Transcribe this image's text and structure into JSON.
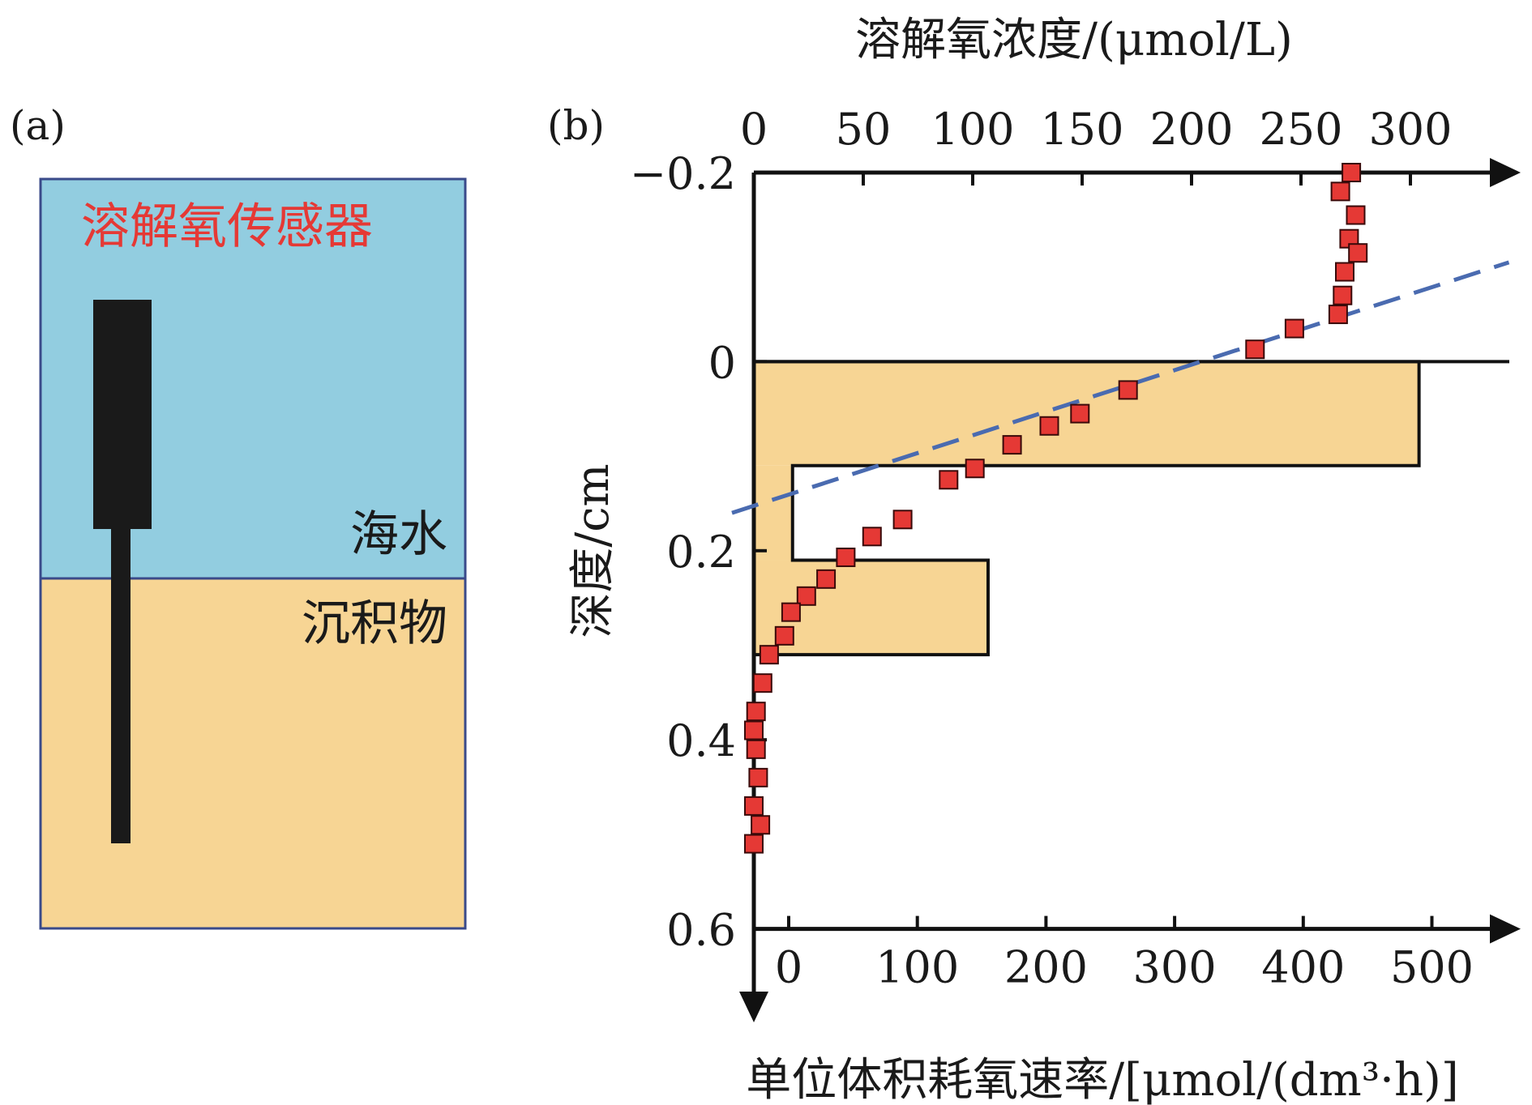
{
  "panel_a": {
    "label": "(a)",
    "sensor_label": "溶解氧传感器",
    "seawater_label": "海水",
    "sediment_label": "沉积物",
    "colors": {
      "seawater": "#92CDE0",
      "sediment": "#F7D594",
      "sensor": "#1a1a1a",
      "sensor_label": "#E53935",
      "border": "#3A4A8A"
    }
  },
  "panel_b": {
    "label": "(b)",
    "top_axis_label": "溶解氧浓度/(μmol/L)",
    "bottom_axis_label": "单位体积耗氧速率/[μmol/(dm³·h)]",
    "left_axis_label": "深度/cm"
  },
  "chart_data": {
    "type": "scatter",
    "y_axis": {
      "label": "深度/cm",
      "range": [
        -0.2,
        0.6
      ],
      "ticks": [
        -0.2,
        0,
        0.2,
        0.4,
        0.6
      ],
      "tick_labels": [
        "−0.2",
        "0",
        "0.2",
        "0.4",
        "0.6"
      ],
      "inverted": true
    },
    "top_x_axis": {
      "label": "溶解氧浓度/(μmol/L)",
      "range": [
        0,
        345
      ],
      "ticks": [
        0,
        50,
        100,
        150,
        200,
        250,
        300
      ]
    },
    "bottom_x_axis": {
      "label": "单位体积耗氧速率/[μmol/(dm³·h)]",
      "range": [
        -30,
        575
      ],
      "ticks": [
        0,
        100,
        200,
        300,
        400,
        500
      ]
    },
    "series": [
      {
        "type": "scatter",
        "axis": "top",
        "color": "#E53935",
        "points": [
          [
            273,
            -0.2
          ],
          [
            268,
            -0.18
          ],
          [
            275,
            -0.155
          ],
          [
            272,
            -0.13
          ],
          [
            276,
            -0.115
          ],
          [
            270,
            -0.095
          ],
          [
            269,
            -0.07
          ],
          [
            267,
            -0.05
          ],
          [
            247,
            -0.035
          ],
          [
            229,
            -0.013
          ],
          [
            171,
            0.03
          ],
          [
            149,
            0.055
          ],
          [
            135,
            0.068
          ],
          [
            118,
            0.088
          ],
          [
            101,
            0.113
          ],
          [
            89,
            0.125
          ],
          [
            68,
            0.167
          ],
          [
            54,
            0.185
          ],
          [
            42,
            0.207
          ],
          [
            33,
            0.23
          ],
          [
            24,
            0.248
          ],
          [
            17,
            0.265
          ],
          [
            14,
            0.29
          ],
          [
            7,
            0.31
          ],
          [
            4,
            0.34
          ],
          [
            1,
            0.37
          ],
          [
            0,
            0.39
          ],
          [
            1,
            0.41
          ],
          [
            2,
            0.44
          ],
          [
            0,
            0.47
          ],
          [
            3,
            0.49
          ],
          [
            0,
            0.51
          ]
        ]
      },
      {
        "type": "step-bar",
        "axis": "bottom",
        "color": "#F7D594",
        "bars": [
          {
            "depth_from": 0.0,
            "depth_to": 0.11,
            "value": 490
          },
          {
            "depth_from": 0.11,
            "depth_to": 0.21,
            "value": 3
          },
          {
            "depth_from": 0.21,
            "depth_to": 0.31,
            "value": 155
          }
        ]
      },
      {
        "type": "line",
        "style": "dashed",
        "axis": "top",
        "color": "#4A6BB0",
        "points": [
          [
            -10,
            0.16
          ],
          [
            345,
            -0.105
          ]
        ]
      }
    ]
  }
}
